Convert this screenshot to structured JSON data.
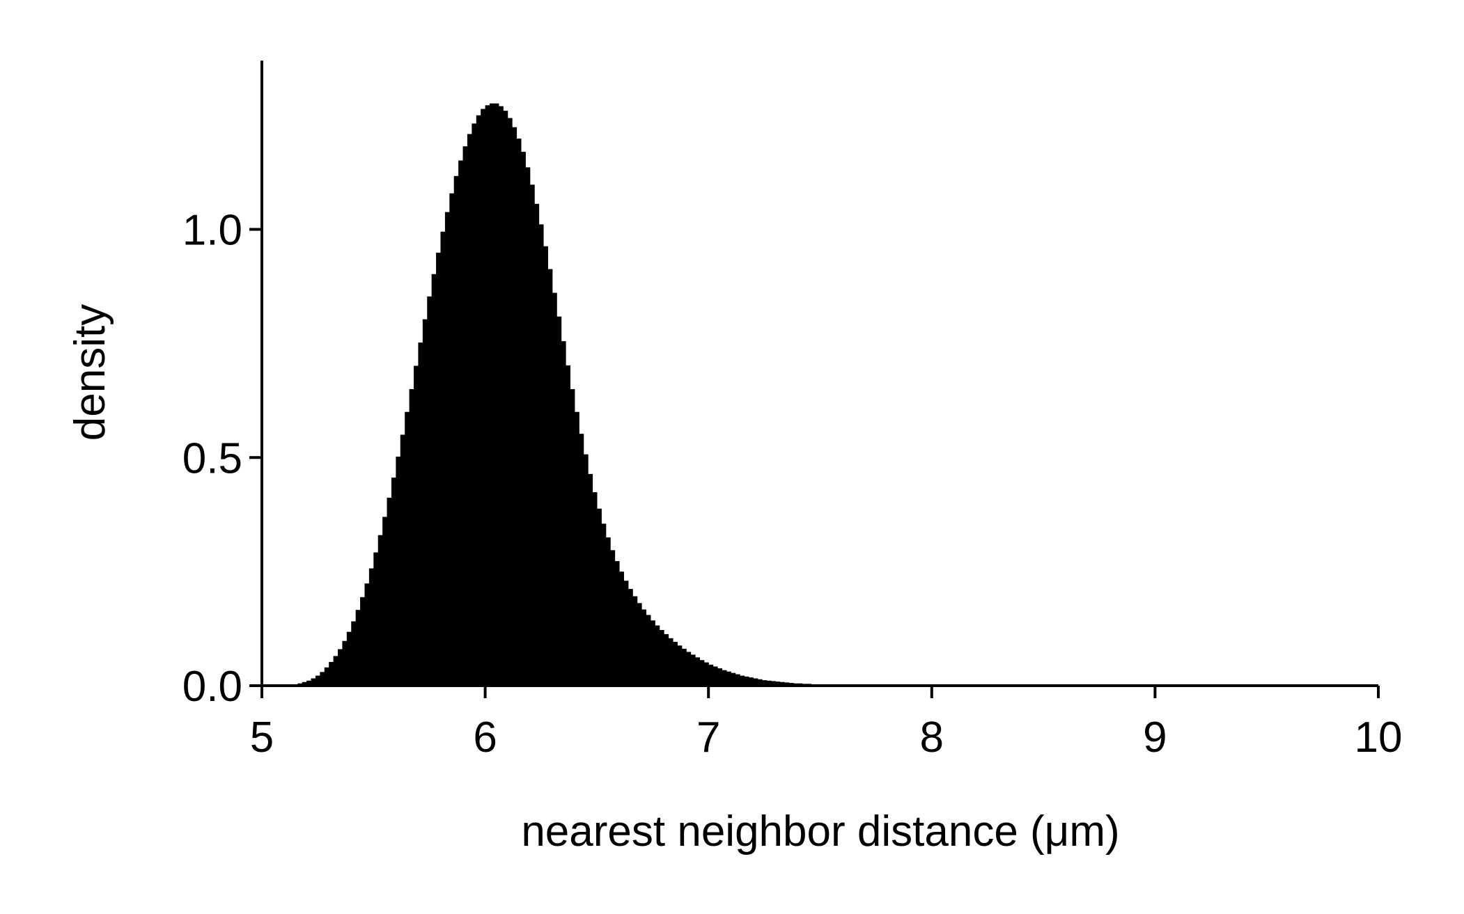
{
  "chart_data": {
    "type": "bar",
    "subtype": "histogram",
    "title": "",
    "xlabel": "nearest neighbor distance (μm)",
    "ylabel": "density",
    "xlim": [
      5,
      10
    ],
    "ylim": [
      0,
      1.37
    ],
    "x_ticks": [
      "5",
      "6",
      "7",
      "8",
      "9",
      "10"
    ],
    "y_ticks": [
      "0.0",
      "0.5",
      "1.0"
    ],
    "grid": false,
    "legend": "none",
    "bar_color": "#000000",
    "bin_width": 0.02,
    "bin_start": 5.0,
    "values": [
      0,
      0,
      0,
      0,
      0,
      0.001,
      0.002,
      0.003,
      0.005,
      0.008,
      0.011,
      0.016,
      0.022,
      0.03,
      0.04,
      0.052,
      0.065,
      0.08,
      0.098,
      0.118,
      0.141,
      0.166,
      0.194,
      0.224,
      0.257,
      0.292,
      0.33,
      0.37,
      0.412,
      0.456,
      0.502,
      0.55,
      0.6,
      0.65,
      0.701,
      0.752,
      0.803,
      0.853,
      0.902,
      0.949,
      0.995,
      1.038,
      1.079,
      1.117,
      1.151,
      1.182,
      1.209,
      1.232,
      1.25,
      1.264,
      1.272,
      1.276,
      1.276,
      1.27,
      1.26,
      1.244,
      1.224,
      1.199,
      1.17,
      1.136,
      1.098,
      1.056,
      1.011,
      0.963,
      0.913,
      0.861,
      0.809,
      0.755,
      0.702,
      0.65,
      0.6,
      0.552,
      0.507,
      0.464,
      0.424,
      0.388,
      0.355,
      0.325,
      0.297,
      0.273,
      0.25,
      0.23,
      0.212,
      0.196,
      0.181,
      0.167,
      0.155,
      0.143,
      0.132,
      0.122,
      0.113,
      0.104,
      0.096,
      0.088,
      0.081,
      0.074,
      0.068,
      0.062,
      0.056,
      0.051,
      0.046,
      0.042,
      0.038,
      0.034,
      0.031,
      0.028,
      0.025,
      0.022,
      0.02,
      0.018,
      0.016,
      0.014,
      0.012,
      0.011,
      0.01,
      0.009,
      0.008,
      0.007,
      0.006,
      0.005,
      0.005,
      0.004,
      0.004,
      0.003,
      0.003,
      0.003,
      0.002,
      0.002,
      0.002,
      0.002,
      0.001,
      0.001,
      0.001,
      0.001,
      0.001,
      0.001,
      0.001,
      0.001,
      0.001,
      0.001,
      0.001,
      0.001,
      0.001,
      0.001,
      0.001,
      0,
      0,
      0,
      0,
      0
    ]
  }
}
